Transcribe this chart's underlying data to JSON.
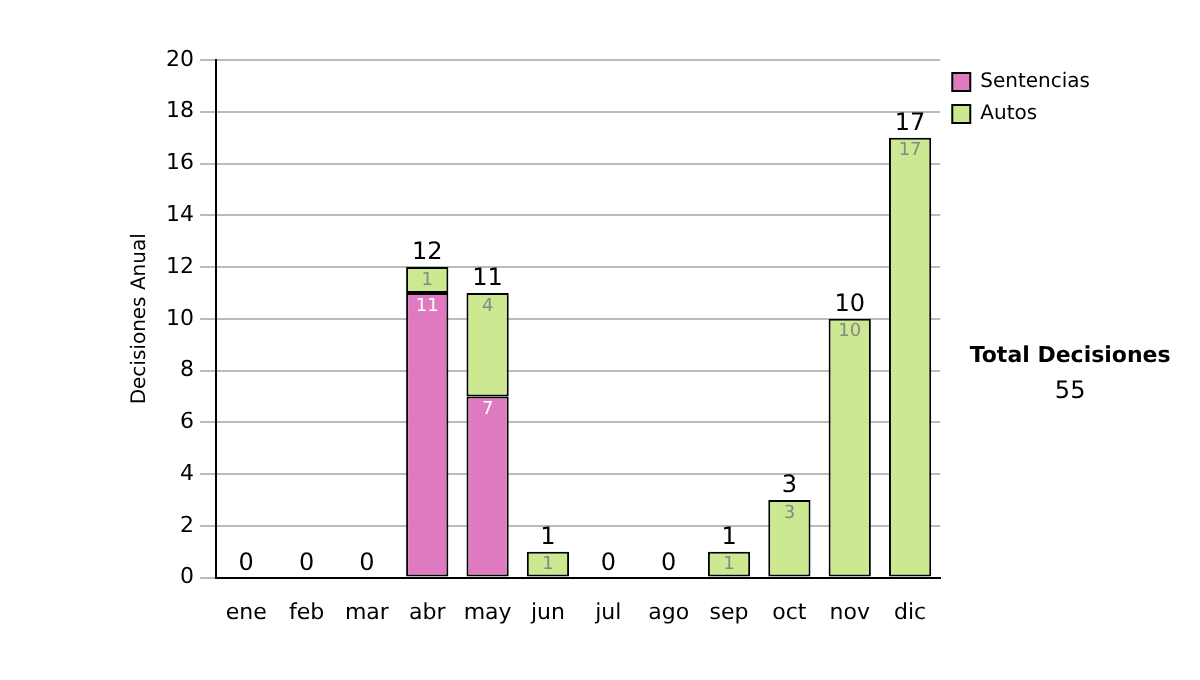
{
  "chart_data": {
    "type": "bar",
    "stacked": true,
    "ylabel": "Decisiones Anual",
    "categories": [
      "ene",
      "feb",
      "mar",
      "abr",
      "may",
      "jun",
      "jul",
      "ago",
      "sep",
      "oct",
      "nov",
      "dic"
    ],
    "series": [
      {
        "name": "Sentencias",
        "color": "#e07ac0",
        "values": [
          0,
          0,
          0,
          11,
          7,
          0,
          0,
          0,
          0,
          0,
          0,
          0
        ],
        "value_labels": [
          null,
          null,
          null,
          "11",
          "7",
          null,
          null,
          null,
          null,
          null,
          null,
          null
        ]
      },
      {
        "name": "Autos",
        "color": "#cce890",
        "values": [
          0,
          0,
          0,
          1,
          4,
          1,
          0,
          0,
          1,
          3,
          10,
          17
        ],
        "value_labels": [
          null,
          null,
          null,
          "1",
          "4",
          "1",
          null,
          null,
          "1",
          "3",
          "10",
          "17"
        ]
      }
    ],
    "totals": [
      "0",
      "0",
      "0",
      "12",
      "11",
      "1",
      "0",
      "0",
      "1",
      "3",
      "10",
      "17"
    ],
    "ylim": [
      0,
      20
    ],
    "yticks": [
      0,
      2,
      4,
      6,
      8,
      10,
      12,
      14,
      16,
      18,
      20
    ],
    "grid": "y",
    "legend": "right",
    "annotations": [
      "Total Decisiones",
      "55"
    ]
  }
}
